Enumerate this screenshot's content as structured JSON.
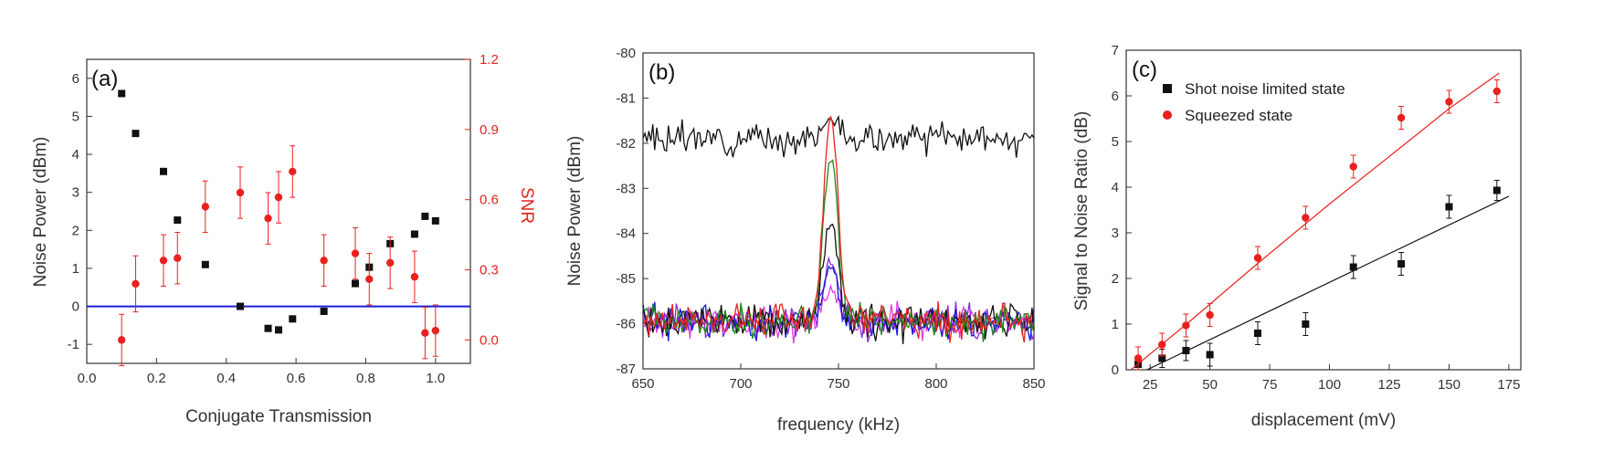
{
  "colors": {
    "black": "#111111",
    "red": "#e8211f",
    "blue": "#1a1ad6",
    "green": "#1a8a1a",
    "purple": "#8a2ae0",
    "magenta": "#e040e0",
    "axis": "#333333"
  },
  "chart_data": [
    {
      "type": "scatter",
      "panel_label": "(a)",
      "xlabel": "Conjugate Transmission",
      "ylabel": "Noise Power (dBm)",
      "y2label": "SNR",
      "xlim": [
        0.0,
        1.1
      ],
      "ylim": [
        -1.5,
        6.5
      ],
      "y2lim": [
        -0.1,
        1.2
      ],
      "xticks": [
        "0.0",
        "0.2",
        "0.4",
        "0.6",
        "0.8",
        "1.0"
      ],
      "yticks": [
        "-1",
        "0",
        "1",
        "2",
        "3",
        "4",
        "5",
        "6"
      ],
      "y2ticks": [
        "0.0",
        "0.3",
        "0.6",
        "0.9",
        "1.2"
      ],
      "hline": 0,
      "series": [
        {
          "axis": "left",
          "color": "black",
          "marker": "square",
          "x": [
            0.1,
            0.14,
            0.22,
            0.26,
            0.34,
            0.44,
            0.52,
            0.55,
            0.59,
            0.68,
            0.77,
            0.81,
            0.87,
            0.94,
            0.97,
            1.0
          ],
          "y": [
            5.6,
            4.55,
            3.55,
            2.27,
            1.1,
            0.0,
            -0.58,
            -0.62,
            -0.33,
            -0.13,
            0.6,
            1.03,
            1.65,
            1.9,
            2.37,
            2.25
          ],
          "err": [
            0.06,
            0.06,
            0.06,
            0.06,
            0.06,
            0.06,
            0.06,
            0.06,
            0.06,
            0.06,
            0.06,
            0.06,
            0.06,
            0.06,
            0.06,
            0.06
          ]
        },
        {
          "axis": "right",
          "color": "red",
          "marker": "circle",
          "x": [
            0.1,
            0.14,
            0.22,
            0.26,
            0.34,
            0.44,
            0.52,
            0.55,
            0.59,
            0.68,
            0.77,
            0.81,
            0.87,
            0.94,
            0.97,
            1.0
          ],
          "y": [
            0.0,
            0.24,
            0.34,
            0.35,
            0.57,
            0.63,
            0.52,
            0.61,
            0.72,
            0.34,
            0.37,
            0.26,
            0.33,
            0.27,
            0.03,
            0.04
          ],
          "err": [
            0.11,
            0.12,
            0.11,
            0.11,
            0.11,
            0.11,
            0.11,
            0.11,
            0.11,
            0.11,
            0.11,
            0.11,
            0.11,
            0.11,
            0.11,
            0.11
          ]
        }
      ]
    },
    {
      "type": "line",
      "panel_label": "(b)",
      "xlabel": "frequency (kHz)",
      "ylabel": "Noise Power (dBm)",
      "xlim": [
        650,
        850
      ],
      "ylim": [
        -87,
        -80
      ],
      "xticks": [
        "650",
        "700",
        "750",
        "800",
        "850"
      ],
      "yticks": [
        "-87",
        "-86",
        "-85",
        "-84",
        "-83",
        "-82",
        "-81",
        "-80"
      ],
      "baseline": -85.95,
      "center": 746,
      "series": [
        {
          "color": "black",
          "level": -81.9,
          "peak": -81.45,
          "noise": 0.16,
          "seed": 3
        },
        {
          "color": "magenta",
          "level": -85.95,
          "peak": -85.2,
          "noise": 0.18,
          "seed": 11
        },
        {
          "color": "purple",
          "level": -85.95,
          "peak": -84.55,
          "noise": 0.18,
          "seed": 17
        },
        {
          "color": "blue",
          "level": -85.95,
          "peak": -84.75,
          "noise": 0.18,
          "seed": 23
        },
        {
          "color": "black",
          "level": -85.95,
          "peak": -83.75,
          "noise": 0.18,
          "seed": 29
        },
        {
          "color": "green",
          "level": -85.95,
          "peak": -82.25,
          "noise": 0.18,
          "seed": 37
        },
        {
          "color": "red",
          "level": -85.95,
          "peak": -81.4,
          "noise": 0.18,
          "seed": 41
        }
      ]
    },
    {
      "type": "scatter",
      "panel_label": "(c)",
      "xlabel": "displacement (mV)",
      "ylabel": "Signal to Noise Ratio (dB)",
      "xlim": [
        15,
        180
      ],
      "ylim": [
        0,
        7
      ],
      "xticks": [
        "25",
        "50",
        "75",
        "100",
        "125",
        "150",
        "175"
      ],
      "yticks": [
        "0",
        "1",
        "2",
        "3",
        "4",
        "5",
        "6",
        "7"
      ],
      "legend_position": "top-left",
      "series": [
        {
          "name": "Shot noise limited state",
          "color": "black",
          "marker": "square",
          "x": [
            20,
            30,
            40,
            50,
            70,
            90,
            110,
            130,
            150,
            170
          ],
          "y": [
            0.12,
            0.25,
            0.42,
            0.33,
            0.8,
            1.0,
            2.25,
            2.32,
            3.57,
            3.93
          ],
          "err": [
            0.15,
            0.2,
            0.22,
            0.25,
            0.25,
            0.25,
            0.25,
            0.25,
            0.25,
            0.22
          ],
          "fit": [
            [
              15,
              -0.22
            ],
            [
              175,
              3.8
            ]
          ]
        },
        {
          "name": "Squeezed state",
          "color": "red",
          "marker": "circle",
          "x": [
            20,
            30,
            40,
            50,
            70,
            90,
            110,
            130,
            150,
            170
          ],
          "y": [
            0.25,
            0.55,
            0.97,
            1.2,
            2.45,
            3.33,
            4.45,
            5.52,
            5.87,
            6.1
          ],
          "err": [
            0.25,
            0.25,
            0.25,
            0.25,
            0.25,
            0.25,
            0.25,
            0.25,
            0.25,
            0.25
          ],
          "fit": [
            [
              17,
              0.0
            ],
            [
              40,
              0.99
            ],
            [
              70,
              2.33
            ],
            [
              100,
              3.63
            ],
            [
              130,
              4.88
            ],
            [
              150,
              5.72
            ],
            [
              171,
              6.5
            ]
          ]
        }
      ]
    }
  ]
}
